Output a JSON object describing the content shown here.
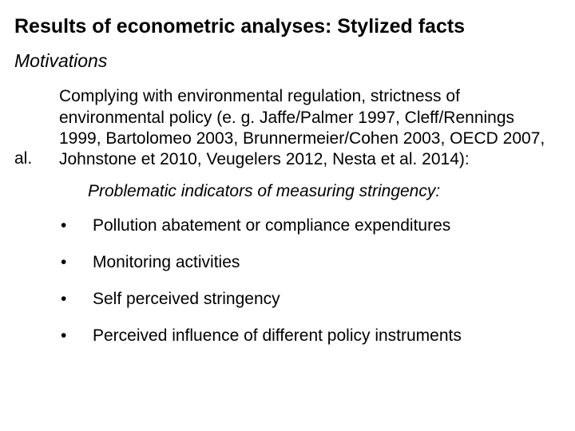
{
  "title": "Results of econometric analyses: Stylized facts",
  "subtitle": "Motivations",
  "left_label": "al.",
  "main_paragraph": "Complying with environmental regulation, strictness of environmental policy (e. g. Jaffe/Palmer 1997, Cleff/Rennings 1999, Bartolomeo 2003, Brunnermeier/Cohen 2003, OECD 2007, Johnstone et 2010, Veugelers 2012, Nesta et al. 2014):",
  "problem_line": "Problematic indicators of measuring stringency:",
  "bullets": [
    "Pollution abatement or compliance expenditures",
    "Monitoring activities",
    "Self perceived stringency",
    "Perceived influence of different policy instruments"
  ],
  "bullet_glyph": "•",
  "colors": {
    "background": "#ffffff",
    "text": "#000000"
  },
  "fonts": {
    "family": "Arial",
    "title_size_pt": 25,
    "body_size_pt": 21
  }
}
